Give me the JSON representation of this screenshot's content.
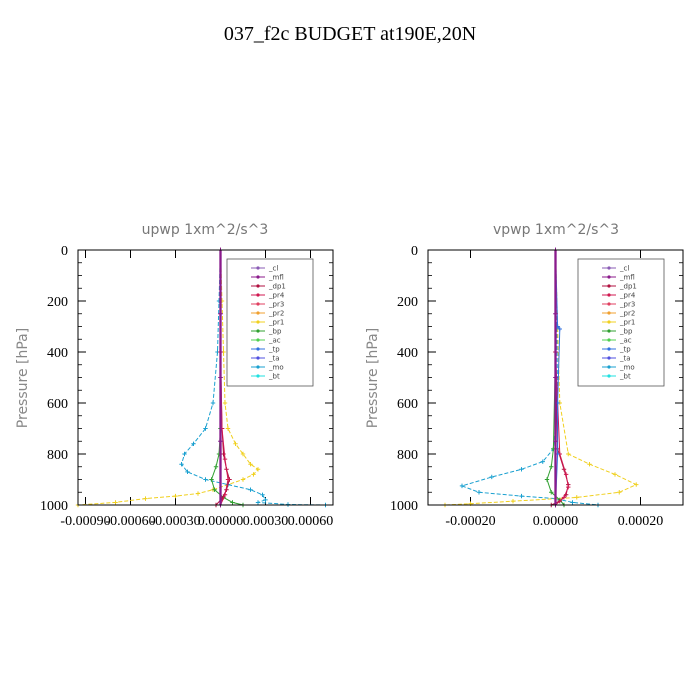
{
  "figure": {
    "title": "037_f2c  BUDGET at190E,20N"
  },
  "colors": {
    "_cl": "#8a5bb5",
    "_mfl": "#8b1a8b",
    "_dp1": "#b01040",
    "_pr4": "#d01850",
    "_pr3": "#e04060",
    "_pr2": "#f0a030",
    "_pr1": "#f0d020",
    "_bp": "#30a030",
    "_ac": "#50d050",
    "_tp": "#3070e0",
    "_ta": "#5050e0",
    "_mo": "#1aa0d0",
    "_bt": "#20e0e0"
  },
  "chart_data": [
    {
      "type": "line",
      "title": "upwp   1xm^2/s^3",
      "ylabel": "Pressure [hPa]",
      "xlabel": "",
      "xlim": [
        -0.00095,
        0.00075
      ],
      "ylim": [
        1000,
        0
      ],
      "xticks": [
        -0.0009,
        -0.0006,
        -0.0003,
        0.0,
        0.0003,
        0.0006
      ],
      "xtick_labels": [
        "-0.00090",
        "-0.00060",
        "-0.00030",
        "0.00000",
        "0.00030",
        "0.00060"
      ],
      "yticks": [
        0,
        200,
        400,
        600,
        800,
        1000
      ],
      "ytick_labels": [
        "0",
        "200",
        "400",
        "600",
        "800",
        "1000"
      ],
      "legend": [
        "_cl",
        "_mfl",
        "_dp1",
        "_pr4",
        "_pr3",
        "_pr2",
        "_pr1",
        "_bp",
        "_ac",
        "_tp",
        "_ta",
        "_mo",
        "_bt"
      ],
      "legend_position": "top-right",
      "series": [
        {
          "name": "_pr1",
          "x": [
            0,
            1e-05,
            2e-05,
            3e-05,
            5e-05,
            0.0001,
            0.00015,
            0.0002,
            0.00025,
            0.00022,
            0.00015,
            5e-05,
            -5e-05,
            -0.00015,
            -0.0003,
            -0.0005,
            -0.0007,
            -0.00095
          ],
          "y": [
            0,
            200,
            400,
            600,
            700,
            760,
            800,
            840,
            860,
            880,
            900,
            920,
            940,
            955,
            965,
            975,
            990,
            1000
          ]
        },
        {
          "name": "_mo",
          "x": [
            0,
            -1e-05,
            -2e-05,
            -5e-05,
            -0.0001,
            -0.00018,
            -0.00024,
            -0.00026,
            -0.00022,
            -0.0001,
            5e-05,
            0.0002,
            0.00028,
            0.0003,
            0.00025,
            0.00045,
            0.0007
          ],
          "y": [
            0,
            200,
            400,
            600,
            700,
            760,
            800,
            840,
            870,
            900,
            920,
            940,
            960,
            980,
            990,
            998,
            1000
          ]
        },
        {
          "name": "_bp",
          "x": [
            0,
            0,
            0,
            -1e-05,
            -3e-05,
            -6e-05,
            -4e-05,
            2e-05,
            8e-05,
            0.00015
          ],
          "y": [
            0,
            400,
            700,
            800,
            850,
            900,
            940,
            970,
            990,
            1000
          ]
        },
        {
          "name": "_dp1",
          "x": [
            0,
            0,
            1e-05,
            2e-05,
            4e-05,
            6e-05,
            4e-05,
            1e-05,
            -3e-05
          ],
          "y": [
            0,
            400,
            700,
            800,
            860,
            900,
            940,
            975,
            1000
          ]
        },
        {
          "name": "_pr4",
          "x": [
            0,
            0,
            1e-05,
            3e-05,
            5e-05,
            3e-05,
            0.0
          ],
          "y": [
            0,
            400,
            700,
            820,
            900,
            960,
            1000
          ]
        },
        {
          "name": "_cl",
          "x": [
            0,
            0,
            0,
            0,
            0
          ],
          "y": [
            0,
            250,
            500,
            750,
            1000
          ]
        },
        {
          "name": "_mfl",
          "x": [
            0,
            0,
            0,
            0,
            0
          ],
          "y": [
            0,
            250,
            500,
            750,
            1000
          ]
        }
      ]
    },
    {
      "type": "line",
      "title": "vpwp   1xm^2/s^3",
      "ylabel": "Pressure [hPa]",
      "xlabel": "",
      "xlim": [
        -0.0003,
        0.0003
      ],
      "ylim": [
        1000,
        0
      ],
      "xticks": [
        -0.0002,
        0.0,
        0.0002
      ],
      "xtick_labels": [
        "-0.00020",
        "0.00000",
        "0.00020"
      ],
      "yticks": [
        0,
        200,
        400,
        600,
        800,
        1000
      ],
      "ytick_labels": [
        "0",
        "200",
        "400",
        "600",
        "800",
        "1000"
      ],
      "legend": [
        "_cl",
        "_mfl",
        "_dp1",
        "_pr4",
        "_pr3",
        "_pr2",
        "_pr1",
        "_bp",
        "_ac",
        "_tp",
        "_ta",
        "_mo",
        "_bt"
      ],
      "legend_position": "top-right",
      "series": [
        {
          "name": "_mo",
          "x": [
            0,
            3e-06,
            5e-06,
            -5e-06,
            -3e-05,
            -8e-05,
            -0.00015,
            -0.00022,
            -0.00018,
            -8e-05,
            0.0,
            4e-05,
            0.0001
          ],
          "y": [
            0,
            300,
            600,
            780,
            830,
            860,
            890,
            925,
            950,
            965,
            975,
            990,
            1000
          ]
        },
        {
          "name": "_pr1",
          "x": [
            0,
            5e-06,
            1e-05,
            3e-05,
            8e-05,
            0.00014,
            0.00019,
            0.00015,
            5e-05,
            -0.0001,
            -0.0002,
            -0.00026
          ],
          "y": [
            0,
            300,
            600,
            800,
            840,
            880,
            920,
            950,
            970,
            985,
            995,
            1000
          ]
        },
        {
          "name": "_bp",
          "x": [
            0,
            0,
            -5e-06,
            -1e-05,
            -2e-05,
            -1e-05,
            1e-05,
            2e-05
          ],
          "y": [
            0,
            400,
            780,
            850,
            900,
            950,
            980,
            1000
          ]
        },
        {
          "name": "_dp1",
          "x": [
            0,
            0,
            5e-06,
            2e-05,
            3e-05,
            2.5e-05,
            1e-05,
            -1e-05
          ],
          "y": [
            0,
            400,
            780,
            860,
            920,
            960,
            985,
            1000
          ]
        },
        {
          "name": "_pr4",
          "x": [
            0,
            0,
            1e-05,
            2.5e-05,
            3e-05,
            2e-05,
            0.0
          ],
          "y": [
            0,
            400,
            800,
            880,
            930,
            970,
            1000
          ]
        },
        {
          "name": "_tp",
          "x": [
            0,
            5e-06,
            1e-05,
            5e-06,
            5e-06,
            0.0
          ],
          "y": [
            0,
            300,
            310,
            600,
            800,
            1000
          ]
        },
        {
          "name": "_cl",
          "x": [
            0,
            0,
            0,
            0,
            0
          ],
          "y": [
            0,
            250,
            500,
            750,
            1000
          ]
        },
        {
          "name": "_mfl",
          "x": [
            0,
            0,
            0,
            0,
            0
          ],
          "y": [
            0,
            250,
            500,
            750,
            1000
          ]
        }
      ]
    }
  ]
}
